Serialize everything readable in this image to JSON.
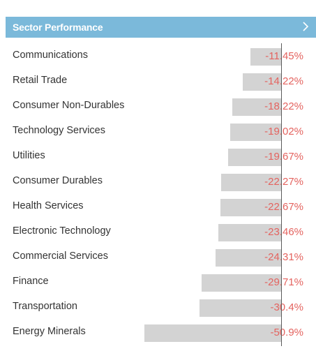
{
  "header": {
    "title": "Sector Performance",
    "chevron_icon": "chevron-right-icon"
  },
  "colors": {
    "header_bg": "#7bb9da",
    "bar": "#d3d3d3",
    "negative": "#e4635f",
    "label": "#333333"
  },
  "sectors": [
    {
      "name": "Communications",
      "change": "-11.45%",
      "value": -11.45
    },
    {
      "name": "Retail Trade",
      "change": "-14.22%",
      "value": -14.22
    },
    {
      "name": "Consumer Non-Durables",
      "change": "-18.22%",
      "value": -18.22
    },
    {
      "name": "Technology Services",
      "change": "-19.02%",
      "value": -19.02
    },
    {
      "name": "Utilities",
      "change": "-19.67%",
      "value": -19.67
    },
    {
      "name": "Consumer Durables",
      "change": "-22.27%",
      "value": -22.27
    },
    {
      "name": "Health Services",
      "change": "-22.67%",
      "value": -22.67
    },
    {
      "name": "Electronic Technology",
      "change": "-23.46%",
      "value": -23.46
    },
    {
      "name": "Commercial Services",
      "change": "-24.31%",
      "value": -24.31
    },
    {
      "name": "Finance",
      "change": "-29.71%",
      "value": -29.71
    },
    {
      "name": "Transportation",
      "change": "-30.4%",
      "value": -30.4
    },
    {
      "name": "Energy Minerals",
      "change": "-50.9%",
      "value": -50.9
    }
  ]
}
